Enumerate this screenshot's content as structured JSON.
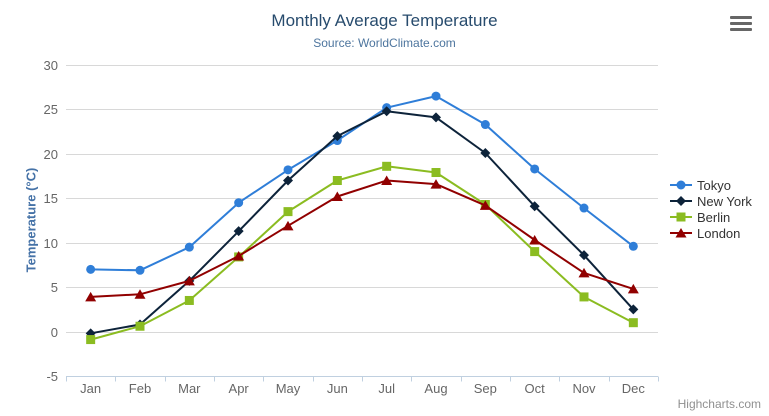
{
  "chart_data": {
    "type": "line",
    "title": "Monthly Average Temperature",
    "subtitle": "Source: WorldClimate.com",
    "credits": "Highcharts.com",
    "xlabel": "",
    "ylabel": "Temperature (°C)",
    "categories": [
      "Jan",
      "Feb",
      "Mar",
      "Apr",
      "May",
      "Jun",
      "Jul",
      "Aug",
      "Sep",
      "Oct",
      "Nov",
      "Dec"
    ],
    "series": [
      {
        "name": "Tokyo",
        "color": "#2f7ed8",
        "marker": "circle",
        "values": [
          7.0,
          6.9,
          9.5,
          14.5,
          18.2,
          21.5,
          25.2,
          26.5,
          23.3,
          18.3,
          13.9,
          9.6
        ]
      },
      {
        "name": "New York",
        "color": "#0d233a",
        "marker": "diamond",
        "values": [
          -0.2,
          0.8,
          5.7,
          11.3,
          17.0,
          22.0,
          24.8,
          24.1,
          20.1,
          14.1,
          8.6,
          2.5
        ]
      },
      {
        "name": "Berlin",
        "color": "#8bbc21",
        "marker": "square",
        "values": [
          -0.9,
          0.6,
          3.5,
          8.4,
          13.5,
          17.0,
          18.6,
          17.9,
          14.3,
          9.0,
          3.9,
          1.0
        ]
      },
      {
        "name": "London",
        "color": "#910000",
        "marker": "triangle",
        "values": [
          3.9,
          4.2,
          5.7,
          8.5,
          11.9,
          15.2,
          17.0,
          16.6,
          14.2,
          10.3,
          6.6,
          4.8
        ]
      }
    ],
    "ylim": [
      -5,
      30
    ],
    "yticks": [
      -5,
      0,
      5,
      10,
      15,
      20,
      25,
      30
    ],
    "grid": true,
    "legend_position": "right",
    "colors": {
      "grid_line": "#d8d8d8",
      "axis_line": "#c0d0e0",
      "tick_label": "#666666",
      "title": "#274b6d",
      "subtitle": "#4d759e",
      "y_axis_title": "#4572a7",
      "legend_text": "#333333",
      "credits": "#909090",
      "background": "#ffffff"
    },
    "context_menu_icon": "hamburger-icon"
  }
}
